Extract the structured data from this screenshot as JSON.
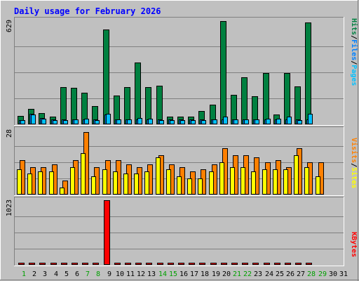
{
  "chart_data": {
    "type": "bar",
    "title": "Daily usage for February 2026",
    "days": [
      "1",
      "2",
      "3",
      "4",
      "5",
      "6",
      "7",
      "8",
      "9",
      "10",
      "11",
      "12",
      "13",
      "14",
      "15",
      "16",
      "17",
      "18",
      "19",
      "20",
      "21",
      "22",
      "23",
      "24",
      "25",
      "26",
      "27",
      "28",
      "29",
      "30",
      "31"
    ],
    "weekend_days": [
      "1",
      "7",
      "8",
      "14",
      "15",
      "21",
      "22",
      "28",
      "29"
    ],
    "panels": [
      {
        "key": "traffic",
        "max_label": "629",
        "ymax": 629,
        "grid": true,
        "legend": [
          "Pages",
          "/",
          "Files",
          "/",
          "Hits"
        ],
        "series": [
          {
            "name": "Hits",
            "color": "#008040",
            "values": [
              50,
              95,
              70,
              45,
              225,
              220,
              190,
              110,
              575,
              175,
              225,
              375,
              225,
              235,
              45,
              45,
              45,
              80,
              120,
              625,
              180,
              285,
              170,
              310,
              60,
              310,
              230,
              615,
              0,
              0,
              0
            ]
          },
          {
            "name": "Files",
            "color": "#0080ff",
            "values": [
              25,
              65,
              40,
              30,
              30,
              30,
              30,
              30,
              60,
              30,
              30,
              30,
              30,
              30,
              30,
              30,
              30,
              30,
              30,
              30,
              30,
              30,
              30,
              30,
              30,
              30,
              30,
              30,
              0,
              0,
              0
            ]
          },
          {
            "name": "Pages",
            "color": "#00c0ff",
            "values": [
              25,
              60,
              35,
              25,
              25,
              30,
              35,
              25,
              65,
              30,
              30,
              40,
              35,
              25,
              25,
              25,
              25,
              25,
              30,
              45,
              30,
              30,
              30,
              35,
              35,
              45,
              25,
              65,
              0,
              0,
              0
            ]
          }
        ]
      },
      {
        "key": "visitors",
        "max_label": "28",
        "ymax": 28,
        "grid": true,
        "legend": [
          "Sites",
          "/",
          "Visits"
        ],
        "series": [
          {
            "name": "Visits",
            "color": "#ff8000",
            "values": [
              15,
              12,
              12,
              13,
              6,
              15,
              27,
              12,
              15,
              15,
              13,
              12,
              13,
              17,
              13,
              12,
              10,
              11,
              13,
              20,
              17,
              17,
              16,
              14,
              15,
              12,
              20,
              14,
              14,
              0,
              0
            ]
          },
          {
            "name": "Sites",
            "color": "#ffff00",
            "values": [
              11,
              9,
              10,
              10,
              3,
              12,
              18,
              8,
              11,
              10,
              9,
              9,
              10,
              16,
              11,
              8,
              7,
              7,
              10,
              14,
              12,
              12,
              10,
              11,
              11,
              11,
              17,
              12,
              8,
              0,
              0
            ]
          }
        ]
      },
      {
        "key": "kbytes",
        "max_label": "1023",
        "ymax": 1023,
        "grid": true,
        "legend": [
          "KBytes"
        ],
        "series": [
          {
            "name": "KBytes",
            "color": "#ff0000",
            "values": [
              18,
              18,
              35,
              18,
              18,
              18,
              18,
              18,
              1023,
              35,
              18,
              18,
              35,
              18,
              18,
              18,
              18,
              35,
              35,
              35,
              35,
              35,
              35,
              35,
              18,
              35,
              35,
              35,
              0,
              0,
              0
            ]
          }
        ]
      }
    ],
    "colors": {
      "background": "#c0c0c0",
      "frame_light": "#ffffff",
      "frame_dark": "#808080",
      "grid": "#808080",
      "title": "#0000ff",
      "day_label": "#000000",
      "weekend_label": "#00a000"
    }
  }
}
